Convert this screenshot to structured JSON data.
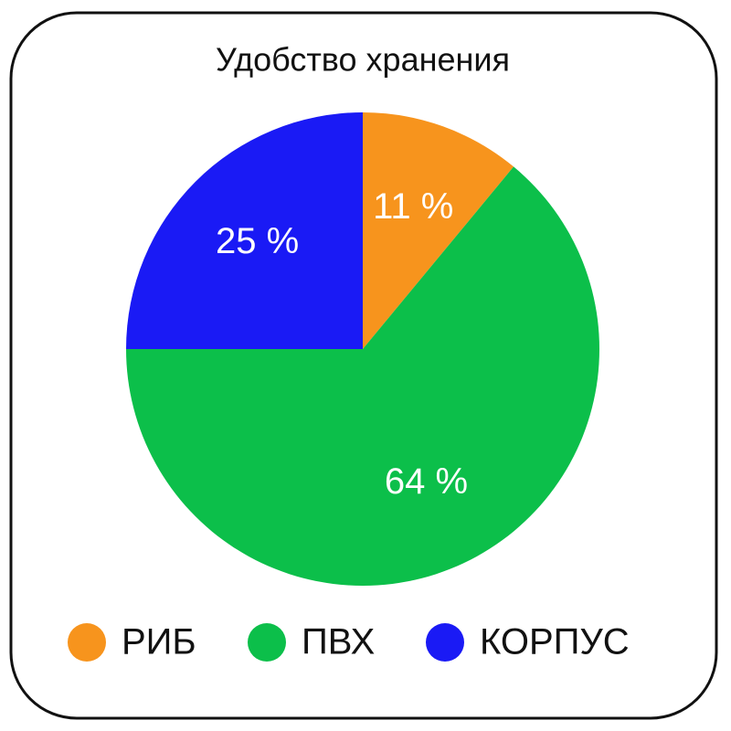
{
  "chart_data": {
    "type": "pie",
    "title": "Удобство хранения",
    "categories": [
      "РИБ",
      "ПВХ",
      "КОРПУС"
    ],
    "values": [
      11,
      64,
      25
    ],
    "value_labels": [
      "11 %",
      "64 %",
      "25 %"
    ],
    "colors": [
      "#f7941d",
      "#0cbf4a",
      "#1a1af5"
    ]
  }
}
